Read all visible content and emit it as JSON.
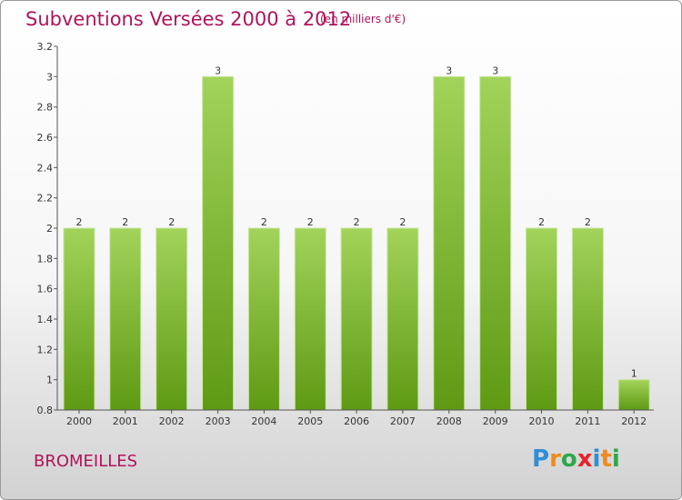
{
  "header": {
    "title": "Subventions Versées 2000 à 2012",
    "subtitle": "(en milliers d'€)"
  },
  "footer": {
    "commune": "BROMEILLES",
    "logo_letters": [
      "P",
      "r",
      "o",
      "x",
      "i",
      "t",
      "i"
    ],
    "logo_colors": [
      "#2f8fd8",
      "#f08a1c",
      "#2ea84a",
      "#e8232a",
      "#2f8fd8",
      "#f08a1c",
      "#2ea84a"
    ]
  },
  "chart_data": {
    "type": "bar",
    "title": "Subventions Versées 2000 à 2012",
    "subtitle": "(en milliers d'€)",
    "categories": [
      "2000",
      "2001",
      "2002",
      "2003",
      "2004",
      "2005",
      "2006",
      "2007",
      "2008",
      "2009",
      "2010",
      "2011",
      "2012"
    ],
    "values": [
      2,
      2,
      2,
      3,
      2,
      2,
      2,
      2,
      3,
      3,
      2,
      2,
      1
    ],
    "value_labels": [
      "2",
      "2",
      "2",
      "3",
      "2",
      "2",
      "2",
      "2",
      "3",
      "3",
      "2",
      "2",
      "1"
    ],
    "ylim": [
      0.8,
      3.2
    ],
    "yticks": [
      0.8,
      1,
      1.2,
      1.4,
      1.6,
      1.8,
      2,
      2.2,
      2.4,
      2.6,
      2.8,
      3,
      3.2
    ],
    "ytick_labels": [
      "0.8",
      "1",
      "1.2",
      "1.4",
      "1.6",
      "1.8",
      "2",
      "2.2",
      "2.4",
      "2.6",
      "2.8",
      "3",
      "3.2"
    ],
    "grid": false,
    "bar_color_top": "#a2d35a",
    "bar_color_bottom": "#5e9a14",
    "xlabel": "",
    "ylabel": ""
  }
}
